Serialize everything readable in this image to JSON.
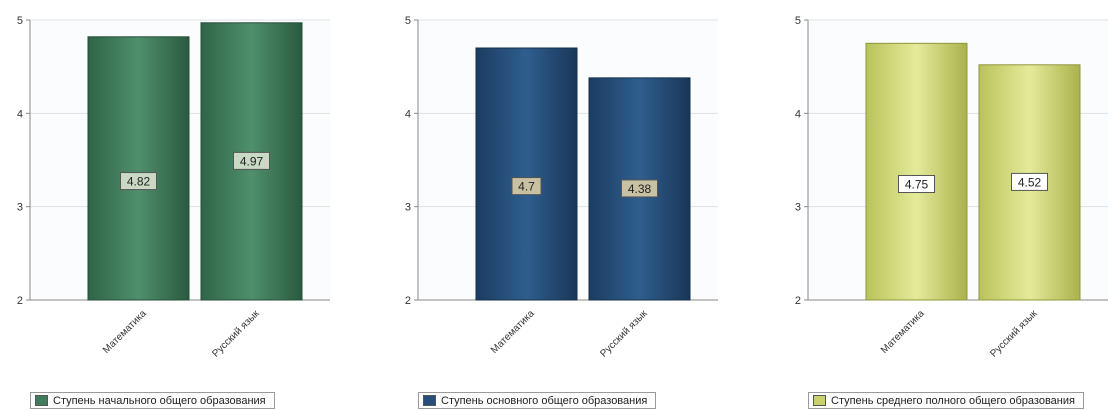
{
  "chart_data": [
    {
      "type": "bar",
      "categories": [
        "Математика",
        "Русский язык"
      ],
      "series": [
        {
          "name": "Ступень начального общего образования",
          "values": [
            4.82,
            4.97
          ],
          "color": "#3f7c5c"
        }
      ],
      "value_labels": [
        "4.82",
        "4.97"
      ],
      "yticks": [
        "2",
        "3",
        "4",
        "5"
      ],
      "ylim": [
        2,
        5
      ],
      "grid": true,
      "legend": "bottom-left"
    },
    {
      "type": "bar",
      "categories": [
        "Математика",
        "Русский язык"
      ],
      "series": [
        {
          "name": "Ступень основного общего образования",
          "values": [
            4.7,
            4.38
          ],
          "color": "#264e78"
        }
      ],
      "value_labels": [
        "4.7",
        "4.38"
      ],
      "yticks": [
        "2",
        "3",
        "4",
        "5"
      ],
      "ylim": [
        2,
        5
      ],
      "grid": true,
      "legend": "bottom-left"
    },
    {
      "type": "bar",
      "categories": [
        "Математика",
        "Русский язык"
      ],
      "series": [
        {
          "name": "Ступень среднего полного общего образования",
          "values": [
            4.75,
            4.52
          ],
          "color": "#c9d26a"
        }
      ],
      "value_labels": [
        "4.75",
        "4.52"
      ],
      "yticks": [
        "2",
        "3",
        "4",
        "5"
      ],
      "ylim": [
        2,
        5
      ],
      "grid": true,
      "legend": "bottom-left"
    }
  ]
}
